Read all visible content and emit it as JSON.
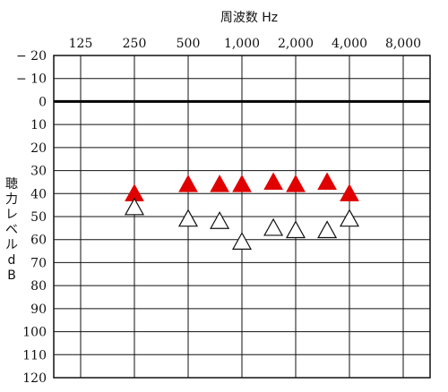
{
  "chart_data": {
    "type": "scatter",
    "title": "周波数 Hz",
    "ylabel": "聴力レベル dB",
    "x_categories": [
      "125",
      "250",
      "500",
      "1,000",
      "2,000",
      "4,000",
      "8,000"
    ],
    "x_values": [
      125,
      250,
      500,
      1000,
      2000,
      4000,
      8000
    ],
    "y_ticks": [
      -20,
      -10,
      0,
      10,
      20,
      30,
      40,
      50,
      60,
      70,
      80,
      90,
      100,
      110,
      120
    ],
    "y_tick_labels": [
      "− 20",
      "− 10",
      "0",
      "10",
      "20",
      "30",
      "40",
      "50",
      "60",
      "70",
      "80",
      "90",
      "100",
      "110",
      "120"
    ],
    "ylim": [
      -20,
      120
    ],
    "y_inverted": true,
    "x_scale": "log2",
    "grid": true,
    "series": [
      {
        "marker": "filled-triangle",
        "color": "#e00000",
        "points": [
          {
            "x": 250,
            "y": 40
          },
          {
            "x": 500,
            "y": 36
          },
          {
            "x": 750,
            "y": 36
          },
          {
            "x": 1000,
            "y": 36
          },
          {
            "x": 1500,
            "y": 35
          },
          {
            "x": 2000,
            "y": 36
          },
          {
            "x": 3000,
            "y": 35
          },
          {
            "x": 4000,
            "y": 40
          }
        ]
      },
      {
        "marker": "open-triangle",
        "color": "#111111",
        "points": [
          {
            "x": 250,
            "y": 46
          },
          {
            "x": 500,
            "y": 51
          },
          {
            "x": 750,
            "y": 52
          },
          {
            "x": 1000,
            "y": 61
          },
          {
            "x": 1500,
            "y": 55
          },
          {
            "x": 2000,
            "y": 56
          },
          {
            "x": 3000,
            "y": 56
          },
          {
            "x": 4000,
            "y": 51
          }
        ]
      }
    ]
  }
}
